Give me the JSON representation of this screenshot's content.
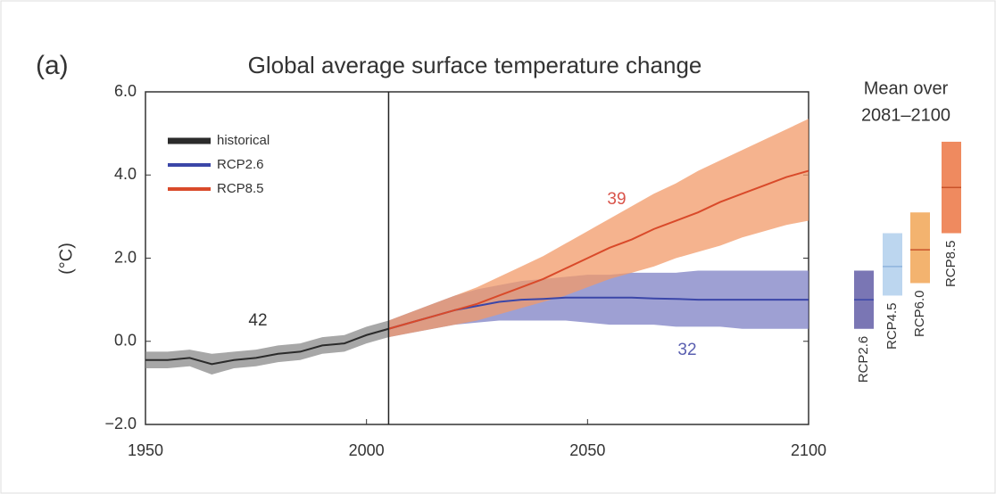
{
  "chart_data": {
    "type": "line",
    "panel_label": "(a)",
    "title": "Global average surface temperature change",
    "y_label": "(°C)",
    "xlim": [
      1950,
      2100
    ],
    "xticks": [
      1950,
      2000,
      2050,
      2100
    ],
    "ylim": [
      -2,
      6
    ],
    "yticks": [
      {
        "value": -2,
        "label": "−2.0"
      },
      {
        "value": 0,
        "label": "0.0"
      },
      {
        "value": 2,
        "label": "2.0"
      },
      {
        "value": 4,
        "label": "4.0"
      },
      {
        "value": 6,
        "label": "6.0"
      }
    ],
    "divider": 2005,
    "legend": "upper left",
    "series": [
      {
        "name": "historical",
        "color": "#2b2b2b",
        "band_color": "#8a8a8a",
        "x": [
          1950,
          1955,
          1960,
          1965,
          1970,
          1975,
          1980,
          1985,
          1990,
          1995,
          2000,
          2005
        ],
        "values": [
          -0.45,
          -0.45,
          -0.4,
          -0.55,
          -0.45,
          -0.4,
          -0.3,
          -0.25,
          -0.1,
          -0.05,
          0.15,
          0.3
        ],
        "lower": [
          -0.65,
          -0.65,
          -0.6,
          -0.8,
          -0.65,
          -0.6,
          -0.5,
          -0.45,
          -0.3,
          -0.25,
          -0.05,
          0.1
        ],
        "upper": [
          -0.25,
          -0.25,
          -0.2,
          -0.3,
          -0.25,
          -0.2,
          -0.1,
          -0.05,
          0.1,
          0.15,
          0.35,
          0.5
        ]
      },
      {
        "name": "RCP2.6",
        "color": "#3b46a8",
        "band_color": "#7d80c4",
        "x": [
          2005,
          2010,
          2015,
          2020,
          2025,
          2030,
          2035,
          2040,
          2045,
          2050,
          2055,
          2060,
          2065,
          2070,
          2075,
          2080,
          2085,
          2090,
          2095,
          2100
        ],
        "values": [
          0.3,
          0.45,
          0.6,
          0.75,
          0.85,
          0.95,
          1.0,
          1.02,
          1.05,
          1.05,
          1.05,
          1.05,
          1.03,
          1.02,
          1.0,
          1.0,
          1.0,
          1.0,
          1.0,
          1.0
        ],
        "lower": [
          0.1,
          0.2,
          0.3,
          0.4,
          0.45,
          0.5,
          0.5,
          0.5,
          0.5,
          0.45,
          0.4,
          0.4,
          0.4,
          0.35,
          0.35,
          0.35,
          0.3,
          0.3,
          0.3,
          0.3
        ],
        "upper": [
          0.5,
          0.7,
          0.9,
          1.1,
          1.25,
          1.35,
          1.45,
          1.5,
          1.55,
          1.6,
          1.6,
          1.65,
          1.65,
          1.65,
          1.7,
          1.7,
          1.7,
          1.7,
          1.7,
          1.7
        ]
      },
      {
        "name": "RCP8.5",
        "color": "#d94a2a",
        "band_color": "#f29a68",
        "x": [
          2005,
          2010,
          2015,
          2020,
          2025,
          2030,
          2035,
          2040,
          2045,
          2050,
          2055,
          2060,
          2065,
          2070,
          2075,
          2080,
          2085,
          2090,
          2095,
          2100
        ],
        "values": [
          0.3,
          0.45,
          0.6,
          0.75,
          0.9,
          1.1,
          1.3,
          1.5,
          1.75,
          2.0,
          2.25,
          2.45,
          2.7,
          2.9,
          3.1,
          3.35,
          3.55,
          3.75,
          3.95,
          4.1
        ],
        "lower": [
          0.1,
          0.2,
          0.3,
          0.4,
          0.5,
          0.65,
          0.8,
          0.95,
          1.1,
          1.3,
          1.5,
          1.65,
          1.8,
          2.0,
          2.15,
          2.3,
          2.5,
          2.65,
          2.8,
          2.9
        ],
        "upper": [
          0.5,
          0.7,
          0.9,
          1.1,
          1.3,
          1.55,
          1.8,
          2.05,
          2.35,
          2.65,
          2.95,
          3.25,
          3.55,
          3.8,
          4.1,
          4.35,
          4.6,
          4.85,
          5.1,
          5.35
        ]
      }
    ],
    "annotations": [
      {
        "text": "42",
        "color": "#333333"
      },
      {
        "text": "39",
        "color": "#d9534a"
      },
      {
        "text": "32",
        "color": "#5a5fb0"
      }
    ],
    "side_title": [
      "Mean over",
      "2081–2100"
    ],
    "side_bars": [
      {
        "name": "RCP2.6",
        "color": "#7a76b4",
        "mean": 1.0,
        "low": 0.3,
        "high": 1.7
      },
      {
        "name": "RCP4.5",
        "color": "#bcd6ef",
        "mean": 1.8,
        "low": 1.1,
        "high": 2.6
      },
      {
        "name": "RCP6.0",
        "color": "#f3b36f",
        "mean": 2.2,
        "low": 1.4,
        "high": 3.1
      },
      {
        "name": "RCP8.5",
        "color": "#ef8a5f",
        "mean": 3.7,
        "low": 2.6,
        "high": 4.8
      }
    ]
  }
}
